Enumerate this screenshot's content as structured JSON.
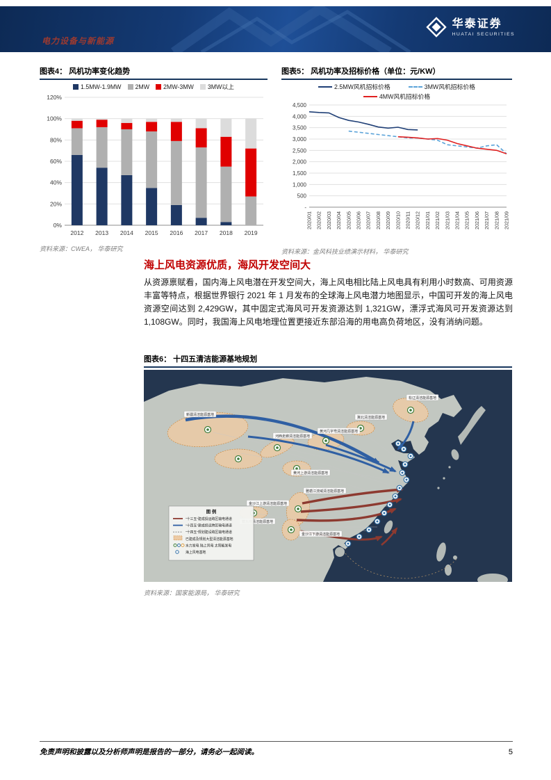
{
  "header": {
    "sector": "电力设备与新能源",
    "brand": "华泰证券",
    "brand_sub": "HUATAI SECURITIES"
  },
  "figures": {
    "fig4": {
      "title": "图表4：  风机功率变化趋势",
      "source": "资料来源：CWEA， 华泰研究"
    },
    "fig5": {
      "title": "图表5：  风机功率及招标价格（单位：元/KW）",
      "source": "资料来源：金风科技业绩演示材料， 华泰研究"
    },
    "fig6": {
      "title": "图表6：  十四五清洁能源基地规划",
      "source": "资料来源：国家能源局， 华泰研究"
    }
  },
  "section": {
    "heading": "海上风电资源优质，海风开发空间大",
    "paragraph": "从资源禀赋看，国内海上风电潜在开发空间大，海上风电相比陆上风电具有利用小时数高、可用资源丰富等特点，根据世界银行 2021 年 1 月发布的全球海上风电潜力地图显示，中国可开发的海上风电资源空间达到 2,429GW，其中固定式海风可开发资源达到 1,321GW，漂浮式海风可开发资源达到 1,108GW。同时，我国海上风电地理位置更接近东部沿海的用电高负荷地区，没有消纳问题。"
  },
  "map": {
    "legend_title": "图 例",
    "legend": [
      {
        "type": "red",
        "label": "“十三五”建成投运跨区输电通道"
      },
      {
        "type": "blue",
        "label": "“十四五”建成投运跨区输电通道"
      },
      {
        "type": "dash",
        "label": "“十四五”规划建设跨区输电通道"
      },
      {
        "type": "area",
        "label": "已建成及规划大型清洁能源基地"
      },
      {
        "type": "icons",
        "label": "水力发电  陆上风电  太阳能发电"
      },
      {
        "type": "dot",
        "label": "海上风电基地"
      }
    ],
    "labels": [
      "新疆清洁能源基地",
      "河西走廊清洁能源基地",
      "黄河上游清洁能源基地",
      "黄河几字弯清洁能源基地",
      "冀北清洁能源基地",
      "松辽清洁能源基地",
      "雅砻江流域清洁能源基地",
      "金沙江上游清洁能源基地",
      "金沙江下游清洁能源基地",
      "藏东南清洁能源基地"
    ]
  },
  "footer": {
    "disclaimer": "免责声明和披露以及分析师声明是报告的一部分，请务必一起阅读。",
    "page": "5"
  },
  "chart_data": [
    {
      "type": "bar",
      "stacked": true,
      "title": "风机功率变化趋势",
      "categories": [
        "2012",
        "2013",
        "2014",
        "2015",
        "2016",
        "2017",
        "2018",
        "2019"
      ],
      "series": [
        {
          "name": "1.5MW-1.9MW",
          "color": "#1f3864",
          "values": [
            66,
            54,
            47,
            35,
            19,
            7,
            3,
            0
          ]
        },
        {
          "name": "2MW",
          "color": "#b0b0b0",
          "values": [
            25,
            38,
            43,
            53,
            60,
            66,
            52,
            27
          ]
        },
        {
          "name": "2MW-3MW",
          "color": "#e00000",
          "values": [
            7,
            7,
            6,
            9,
            18,
            18,
            28,
            45
          ]
        },
        {
          "name": "3MW以上",
          "color": "#dcdcdc",
          "values": [
            2,
            1,
            4,
            3,
            3,
            9,
            17,
            28
          ]
        }
      ],
      "xlabel": "",
      "ylabel": "",
      "ylim": [
        0,
        120
      ],
      "yticks": [
        "0%",
        "20%",
        "40%",
        "60%",
        "80%",
        "100%",
        "120%"
      ],
      "grid": true,
      "legend_position": "top"
    },
    {
      "type": "line",
      "title": "风机功率及招标价格（单位：元/KW）",
      "x": [
        "2020/01",
        "2020/02",
        "2020/03",
        "2020/04",
        "2020/05",
        "2020/06",
        "2020/07",
        "2020/08",
        "2020/09",
        "2020/10",
        "2020/11",
        "2020/12",
        "2021/01",
        "2021/02",
        "2021/03",
        "2021/04",
        "2021/05",
        "2021/06",
        "2021/07",
        "2021/08",
        "2021/09"
      ],
      "series": [
        {
          "name": "2.5MW风机招标价格",
          "color": "#1f3f76",
          "dash": false,
          "values": [
            4200,
            4170,
            4150,
            3950,
            3820,
            3750,
            3650,
            3530,
            3480,
            3520,
            3420,
            3400,
            null,
            null,
            null,
            null,
            null,
            null,
            null,
            null,
            null
          ]
        },
        {
          "name": "3MW风机招标价格",
          "color": "#5ba3d9",
          "dash": true,
          "values": [
            null,
            null,
            null,
            null,
            3350,
            3300,
            3250,
            3200,
            3150,
            3100,
            3050,
            3050,
            3000,
            2950,
            2750,
            2700,
            2650,
            2600,
            2700,
            2750,
            2350
          ]
        },
        {
          "name": "4MW风机招标价格",
          "color": "#e02020",
          "dash": false,
          "values": [
            null,
            null,
            null,
            null,
            null,
            null,
            null,
            null,
            null,
            3100,
            3080,
            3050,
            3000,
            3020,
            2950,
            2800,
            2700,
            2600,
            2550,
            2500,
            2350
          ]
        }
      ],
      "xlabel": "",
      "ylabel": "",
      "ylim": [
        0,
        4500
      ],
      "yticks": [
        "-",
        "500",
        "1,000",
        "1,500",
        "2,000",
        "2,500",
        "3,000",
        "3,500",
        "4,000",
        "4,500"
      ],
      "grid": true,
      "legend_position": "top"
    }
  ]
}
